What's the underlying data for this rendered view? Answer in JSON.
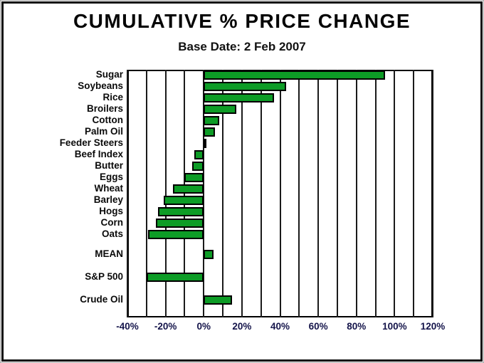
{
  "header": {
    "title": "CUMULATIVE % PRICE CHANGE",
    "subtitle": "Base Date: 2 Feb 2007"
  },
  "colors": {
    "bar_fill": "#0d9c26",
    "bar_border": "#000000",
    "gridline": "#1a1a1a",
    "frame": "#000000",
    "text": "#000000"
  },
  "chart_data": {
    "type": "bar",
    "orientation": "horizontal",
    "title": "CUMULATIVE % PRICE CHANGE",
    "subtitle": "Base Date: 2 Feb 2007",
    "xlabel": "",
    "ylabel": "",
    "xlim": [
      -40,
      120
    ],
    "grid_step_pct": 10,
    "tick_step_pct": 20,
    "tick_labels": [
      "-40%",
      "-20%",
      "0%",
      "20%",
      "40%",
      "60%",
      "80%",
      "100%",
      "120%"
    ],
    "legend": "none",
    "grid": "vertical-on",
    "commodities": {
      "categories": [
        "Sugar",
        "Soybeans",
        "Rice",
        "Broilers",
        "Cotton",
        "Palm Oil",
        "Feeder Steers",
        "Beef Index",
        "Butter",
        "Eggs",
        "Wheat",
        "Barley",
        "Hogs",
        "Corn",
        "Oats"
      ],
      "values": [
        95,
        43,
        37,
        17,
        8,
        6,
        1,
        -5,
        -6,
        -10,
        -16,
        -21,
        -24,
        -25,
        -29
      ]
    },
    "summary": {
      "categories": [
        "MEAN",
        "S&P 500",
        "Crude Oil"
      ],
      "values": [
        5,
        -30,
        15
      ]
    },
    "units": "percent"
  }
}
